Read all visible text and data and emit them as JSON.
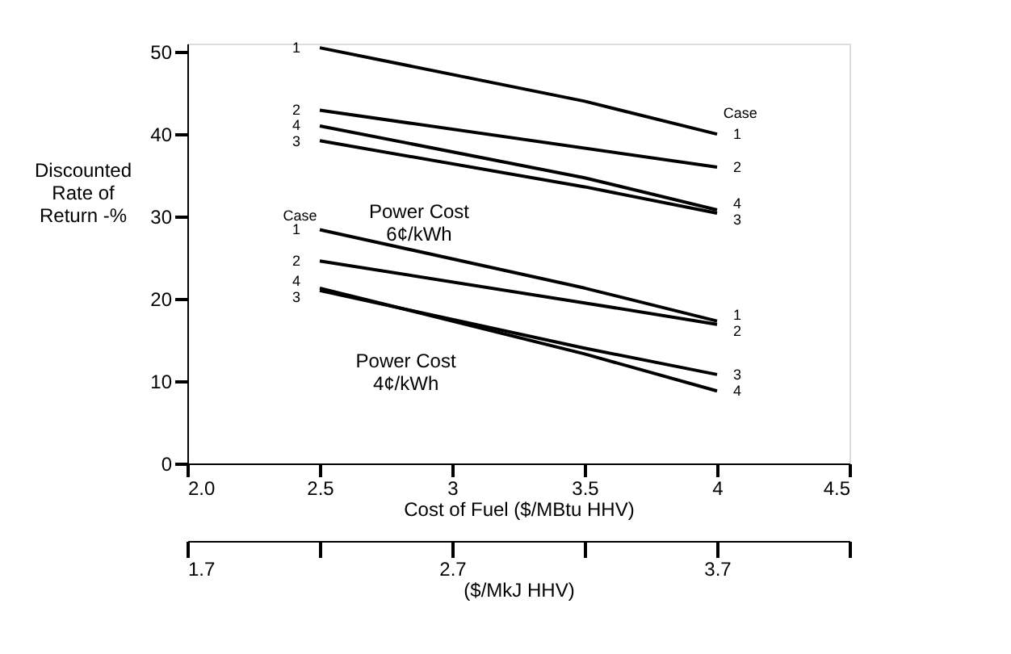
{
  "chart_data": {
    "type": "line",
    "xlabel": "Cost of Fuel ($/MBtu HHV)",
    "ylabel": "Discounted\nRate of\nReturn -%",
    "x2label": "($/MkJ HHV)",
    "xlim": [
      2.0,
      4.5
    ],
    "xticks": [
      {
        "value": 2.0,
        "label": "2.0"
      },
      2.5,
      3,
      3.5,
      4,
      4.5
    ],
    "x2lim": [
      1.7,
      4.2
    ],
    "x2ticks": [
      1.7,
      {
        "value": 2.2,
        "label": null
      },
      2.7,
      {
        "value": 3.2,
        "label": null
      },
      3.7,
      {
        "value": 4.2,
        "label": null
      }
    ],
    "ylim": [
      0,
      51
    ],
    "yticks": [
      0,
      10,
      20,
      30,
      40,
      50
    ],
    "grid": false,
    "legend": false,
    "marker": "none",
    "line_style": "solid",
    "series": [
      {
        "name": "1",
        "color": "#000000",
        "x": [
          2.5,
          3.5,
          4
        ],
        "values": [
          50.5,
          44.0,
          40.0
        ]
      },
      {
        "name": "2",
        "color": "#000000",
        "x": [
          2.5,
          4
        ],
        "values": [
          42.9,
          36.0
        ]
      },
      {
        "name": "4",
        "color": "#000000",
        "x": [
          2.5,
          3.5,
          4
        ],
        "values": [
          41.0,
          34.7,
          30.8
        ]
      },
      {
        "name": "3",
        "color": "#000000",
        "x": [
          2.5,
          3.5,
          4
        ],
        "values": [
          39.2,
          33.6,
          30.4
        ]
      },
      {
        "name": "1",
        "color": "#000000",
        "x": [
          2.5,
          3.5,
          4
        ],
        "values": [
          28.4,
          21.3,
          17.3
        ]
      },
      {
        "name": "2",
        "color": "#000000",
        "x": [
          2.5,
          3.5,
          4
        ],
        "values": [
          24.6,
          19.5,
          16.9
        ]
      },
      {
        "name": "4",
        "color": "#000000",
        "x": [
          2.5,
          3.5,
          4
        ],
        "values": [
          21.3,
          13.3,
          8.8
        ]
      },
      {
        "name": "3",
        "color": "#000000",
        "x": [
          2.5,
          3.5,
          4
        ],
        "values": [
          21.0,
          14.0,
          10.8
        ]
      }
    ],
    "annotations": [
      "Case",
      "Case",
      "Power Cost\n6¢/kWh",
      "Power Cost\n4¢/kWh"
    ]
  }
}
